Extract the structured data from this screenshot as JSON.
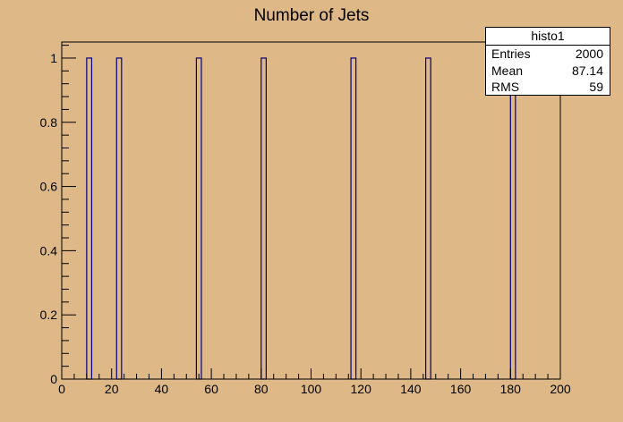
{
  "chart_data": {
    "type": "bar",
    "title": "Number of Jets",
    "xlabel": "",
    "ylabel": "",
    "xlim": [
      0,
      200
    ],
    "ylim": [
      0,
      1.05
    ],
    "bin_width": 2,
    "x": [
      11,
      23,
      55,
      81,
      117,
      147,
      181
    ],
    "values": [
      1,
      1,
      1,
      1,
      1,
      1,
      1
    ],
    "x_ticks": [
      "0",
      "20",
      "40",
      "60",
      "80",
      "100",
      "120",
      "140",
      "160",
      "180",
      "200"
    ],
    "y_ticks": [
      "0",
      "0.2",
      "0.4",
      "0.6",
      "0.8",
      "1"
    ],
    "colors": {
      "background": "#deb887",
      "bar_line": "#000080",
      "axis": "#000000"
    }
  },
  "stats_box": {
    "name": "histo1",
    "rows": [
      {
        "label": "Entries",
        "value": "2000"
      },
      {
        "label": "Mean",
        "value": "87.14"
      },
      {
        "label": "RMS",
        "value": "59"
      }
    ]
  }
}
